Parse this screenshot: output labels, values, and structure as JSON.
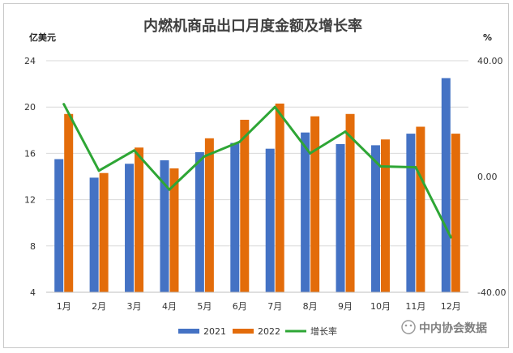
{
  "chart_data": {
    "type": "bar",
    "title": "内燃机商品出口月度金额及增长率",
    "ylabel": "亿美元",
    "y2label": "%",
    "categories": [
      "1月",
      "2月",
      "3月",
      "4月",
      "5月",
      "6月",
      "7月",
      "8月",
      "9月",
      "10月",
      "11月",
      "12月"
    ],
    "ylim": [
      4,
      24
    ],
    "yticks": [
      "4",
      "8",
      "12",
      "16",
      "20",
      "24"
    ],
    "y2lim": [
      -40,
      40
    ],
    "y2ticks": [
      "-40.00",
      "0.00",
      "40.00"
    ],
    "series": [
      {
        "name": "2021",
        "type": "bar",
        "axis": "left",
        "color": "#4472c4",
        "values": [
          15.5,
          13.9,
          15.1,
          15.4,
          16.1,
          16.9,
          16.4,
          17.8,
          16.8,
          16.7,
          17.7,
          22.5
        ]
      },
      {
        "name": "2022",
        "type": "bar",
        "axis": "left",
        "color": "#e36c0a",
        "values": [
          19.4,
          14.3,
          16.5,
          14.7,
          17.3,
          18.9,
          20.3,
          19.2,
          19.4,
          17.2,
          18.3,
          17.7
        ]
      },
      {
        "name": "增长率",
        "type": "line",
        "axis": "right",
        "color": "#2ea635",
        "values": [
          25.0,
          2.0,
          9.0,
          -4.5,
          7.0,
          12.0,
          24.0,
          8.0,
          15.5,
          3.5,
          3.2,
          -21.0
        ]
      }
    ],
    "grid": true,
    "legend": "bottom"
  },
  "watermark": "中内协会数据"
}
